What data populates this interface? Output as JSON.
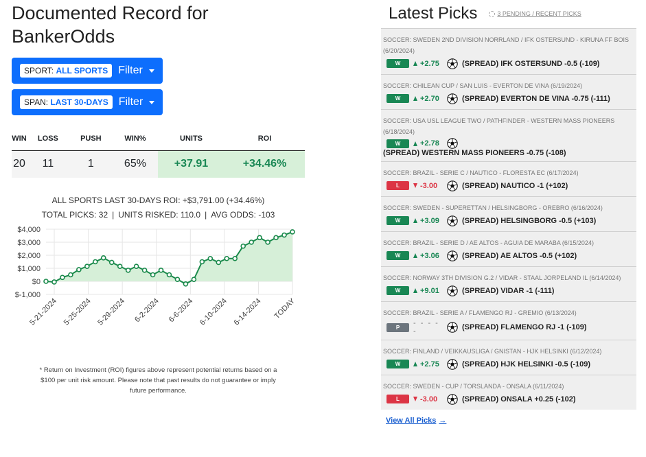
{
  "record": {
    "title": "Documented Record for BankerOdds",
    "filters": [
      {
        "key": "SPORT:",
        "value": "ALL SPORTS",
        "label": "Filter"
      },
      {
        "key": "SPAN:",
        "value": "LAST 30-DAYS",
        "label": "Filter"
      }
    ],
    "stats": {
      "headers": [
        "WIN",
        "LOSS",
        "PUSH",
        "WIN%",
        "UNITS",
        "ROI"
      ],
      "values": [
        "20",
        "11",
        "1",
        "65%",
        "+37.91",
        "+34.46%"
      ]
    },
    "summary": {
      "roi_line": "ALL SPORTS LAST 30-DAYS ROI: +$3,791.00 (+34.46%)",
      "total_picks": "TOTAL PICKS: 32",
      "units_risked": "UNITS RISKED: 110.0",
      "avg_odds": "AVG ODDS: -103",
      "separator": "|"
    },
    "disclaimer": "* Return on Investment (ROI) figures above represent potential returns based on a $100 per unit risk amount. Please note that past results do not guarantee or imply future performance."
  },
  "chart_data": {
    "type": "area",
    "x_tick_labels": [
      "5-21-2024",
      "5-25-2024",
      "5-29-2024",
      "6-2-2024",
      "6-6-2024",
      "6-10-2024",
      "6-14-2024",
      "TODAY"
    ],
    "y_tick_labels": [
      "$4,000",
      "$3,000",
      "$2,000",
      "$1,000",
      "$0",
      "$-1,000"
    ],
    "ylim": [
      -1000,
      4000
    ],
    "values": [
      0,
      -50,
      300,
      500,
      900,
      1150,
      1500,
      1800,
      1450,
      1150,
      850,
      1150,
      850,
      500,
      850,
      500,
      150,
      -200,
      150,
      1500,
      1750,
      1450,
      1750,
      1750,
      2700,
      3000,
      3350,
      3000,
      3350,
      3550,
      3791
    ],
    "colors": {
      "line": "#1b8a4c",
      "fill": "#d6efd8",
      "grid": "#e5e5e5"
    }
  },
  "latest": {
    "title": "Latest Picks",
    "pending_link": "3 PENDING / RECENT PICKS",
    "picks": [
      {
        "meta": "SOCCER: SWEDEN 2ND DIVISION NORRLAND / IFK OSTERSUND - KIRUNA FF BOIS (6/20/2024)",
        "result": "W",
        "amount": "+2.75",
        "text": "(SPREAD) IFK OSTERSUND -0.5 (-109)"
      },
      {
        "meta": "SOCCER: CHILEAN CUP / SAN LUIS - EVERTON DE VINA (6/19/2024)",
        "result": "W",
        "amount": "+2.70",
        "text": "(SPREAD) EVERTON DE VINA -0.75 (-111)"
      },
      {
        "meta": "SOCCER: USA USL LEAGUE TWO / PATHFINDER - WESTERN MASS PIONEERS (6/18/2024)",
        "result": "W",
        "amount": "+2.78",
        "text": "(SPREAD) WESTERN MASS PIONEERS -0.75 (-108)"
      },
      {
        "meta": "SOCCER: BRAZIL - SERIE C / NAUTICO - FLORESTA EC (6/17/2024)",
        "result": "L",
        "amount": "-3.00",
        "text": "(SPREAD) NAUTICO -1 (+102)"
      },
      {
        "meta": "SOCCER: SWEDEN - SUPERETTAN / HELSINGBORG - OREBRO (6/16/2024)",
        "result": "W",
        "amount": "+3.09",
        "text": "(SPREAD) HELSINGBORG -0.5 (+103)"
      },
      {
        "meta": "SOCCER: BRAZIL - SERIE D / AE ALTOS - AGUIA DE MARABA (6/15/2024)",
        "result": "W",
        "amount": "+3.06",
        "text": "(SPREAD) AE ALTOS -0.5 (+102)"
      },
      {
        "meta": "SOCCER: NORWAY 3TH DIVISION G.2 / VIDAR - STAAL JORPELAND IL (6/14/2024)",
        "result": "W",
        "amount": "+9.01",
        "text": "(SPREAD) VIDAR -1 (-111)"
      },
      {
        "meta": "SOCCER: BRAZIL - SERIE A / FLAMENGO RJ - GREMIO (6/13/2024)",
        "result": "P",
        "amount": "- - - - -",
        "text": "(SPREAD) FLAMENGO RJ -1 (-109)"
      },
      {
        "meta": "SOCCER: FINLAND / VEIKKAUSLIGA / GNISTAN - HJK HELSINKI (6/12/2024)",
        "result": "W",
        "amount": "+2.75",
        "text": "(SPREAD) HJK HELSINKI -0.5 (-109)"
      },
      {
        "meta": "SOCCER: SWEDEN - CUP / TORSLANDA - ONSALA (6/11/2024)",
        "result": "L",
        "amount": "-3.00",
        "text": "(SPREAD) ONSALA +0.25 (-102)"
      }
    ],
    "view_all": "View All Picks",
    "icons": {
      "sport": "soccer-ball-icon",
      "win": "triangle-up-icon",
      "loss": "triangle-down-icon",
      "more": "arrow-right-icon"
    }
  }
}
